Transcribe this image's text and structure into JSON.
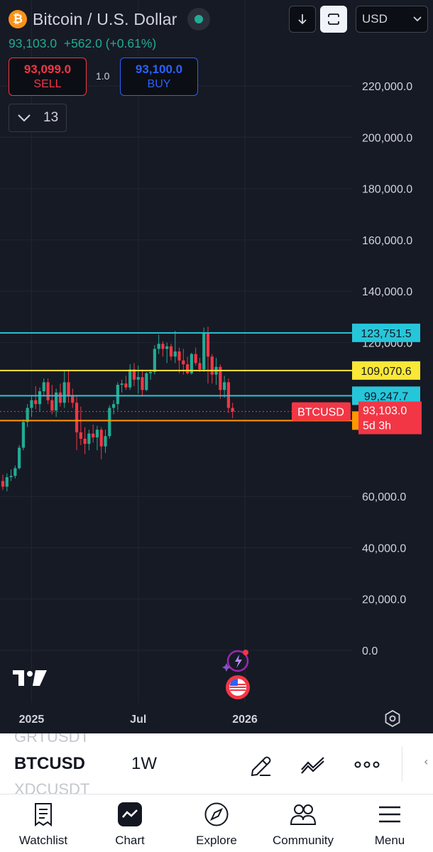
{
  "header": {
    "logo_glyph": "₿",
    "title": "Bitcoin / U.S. Dollar",
    "currency": "USD",
    "price_line": "93,103.0  +562.0 (+0.61%)"
  },
  "trade": {
    "sell_price": "93,099.0",
    "sell_label": "SELL",
    "spread": "1.0",
    "buy_price": "93,100.0",
    "buy_label": "BUY"
  },
  "indicators_count": "13",
  "chart_data": {
    "type": "candlestick",
    "interval": "1W",
    "ylim": [
      0,
      230000
    ],
    "y_ticks": [
      {
        "value": 220000,
        "label": "220,000.0"
      },
      {
        "value": 200000,
        "label": "200,000.0"
      },
      {
        "value": 180000,
        "label": "180,000.0"
      },
      {
        "value": 160000,
        "label": "160,000.0"
      },
      {
        "value": 140000,
        "label": "140,000.0"
      },
      {
        "value": 120000,
        "label": "120,000.0"
      },
      {
        "value": 60000,
        "label": "60,000.0"
      },
      {
        "value": 40000,
        "label": "40,000.0"
      },
      {
        "value": 20000,
        "label": "20,000.0"
      },
      {
        "value": 0,
        "label": "0.0"
      }
    ],
    "x_ticks": [
      {
        "week": 7,
        "label": "2025"
      },
      {
        "week": 33,
        "label": "Jul"
      },
      {
        "week": 59,
        "label": "2026"
      }
    ],
    "candles": [
      [
        66000,
        68500,
        62500,
        63800
      ],
      [
        63800,
        69000,
        62000,
        67500
      ],
      [
        67500,
        70500,
        66000,
        68000
      ],
      [
        68000,
        72000,
        67000,
        71000
      ],
      [
        71000,
        80000,
        70500,
        79000
      ],
      [
        79000,
        90000,
        78000,
        89000
      ],
      [
        89000,
        96000,
        87000,
        94500
      ],
      [
        94500,
        99500,
        91000,
        97500
      ],
      [
        97500,
        103000,
        94000,
        96000
      ],
      [
        96000,
        102500,
        93000,
        101000
      ],
      [
        101000,
        106000,
        99500,
        104500
      ],
      [
        104500,
        106000,
        96000,
        97500
      ],
      [
        97500,
        103500,
        92000,
        93500
      ],
      [
        93500,
        102000,
        91000,
        100500
      ],
      [
        100500,
        104000,
        95000,
        96500
      ],
      [
        96500,
        109000,
        94500,
        104500
      ],
      [
        104500,
        109500,
        96500,
        99000
      ],
      [
        99000,
        102000,
        94500,
        96500
      ],
      [
        96500,
        99000,
        78000,
        85000
      ],
      [
        85000,
        95000,
        80000,
        82500
      ],
      [
        82500,
        87000,
        76500,
        80500
      ],
      [
        80500,
        86000,
        78000,
        84500
      ],
      [
        84500,
        88000,
        81000,
        83000
      ],
      [
        83000,
        87500,
        78000,
        86000
      ],
      [
        86000,
        87000,
        74500,
        79500
      ],
      [
        79500,
        86000,
        77000,
        83500
      ],
      [
        83500,
        95500,
        82500,
        94500
      ],
      [
        94500,
        97500,
        92000,
        96000
      ],
      [
        96000,
        104500,
        93500,
        103500
      ],
      [
        103500,
        105500,
        100500,
        104000
      ],
      [
        104000,
        107000,
        101500,
        102500
      ],
      [
        102500,
        111500,
        101500,
        109500
      ],
      [
        109500,
        112000,
        103000,
        105500
      ],
      [
        105500,
        111000,
        100000,
        106500
      ],
      [
        106500,
        109500,
        99000,
        101500
      ],
      [
        101500,
        108500,
        101000,
        108000
      ],
      [
        108000,
        109500,
        105500,
        108500
      ],
      [
        108500,
        119000,
        107500,
        117500
      ],
      [
        117500,
        123000,
        115500,
        119500
      ],
      [
        119500,
        120500,
        114500,
        117500
      ],
      [
        117500,
        120000,
        112000,
        118500
      ],
      [
        118500,
        119500,
        113000,
        114500
      ],
      [
        114500,
        124500,
        112000,
        116500
      ],
      [
        116500,
        118000,
        108000,
        113000
      ],
      [
        113000,
        117500,
        107500,
        111500
      ],
      [
        111500,
        114500,
        107500,
        108000
      ],
      [
        108000,
        116000,
        107500,
        115500
      ],
      [
        115500,
        118000,
        111000,
        112000
      ],
      [
        112000,
        114000,
        108500,
        109500
      ],
      [
        109500,
        125800,
        108500,
        123500
      ],
      [
        123500,
        126200,
        104000,
        114500
      ],
      [
        114500,
        115500,
        104000,
        107500
      ],
      [
        107500,
        114000,
        103500,
        110500
      ],
      [
        110500,
        111500,
        98000,
        101500
      ],
      [
        101500,
        107000,
        98500,
        104500
      ],
      [
        104500,
        106000,
        92500,
        94500
      ],
      [
        94500,
        96500,
        90500,
        93103
      ]
    ]
  },
  "levels": [
    {
      "value": 123751.5,
      "label": "123,751.5",
      "color": "#26c6da",
      "text_color": "#131722"
    },
    {
      "value": 109070.6,
      "label": "109,070.6",
      "color": "#fbe737",
      "text_color": "#131722"
    },
    {
      "value": 99247.7,
      "label": "99,247.7",
      "color": "#26c6da",
      "text_color": "#131722"
    },
    {
      "value": 89557.9,
      "label": "89,557.9",
      "color": "#ff9800",
      "text_color": "#131722"
    }
  ],
  "current_price": {
    "symbol": "BTCUSD",
    "price": "93,103.0",
    "countdown": "5d 3h",
    "value": 93103,
    "color": "#f23645"
  },
  "colors": {
    "up": "#22ab94",
    "down": "#f23645",
    "background": "#161a25",
    "grid": "#222631"
  },
  "symbol_bar": {
    "ghost_prev": "GRTUSDT",
    "symbol": "BTCUSD",
    "interval": "1W",
    "ghost_next": "XDCUSDT"
  },
  "nav": [
    {
      "label": "Watchlist",
      "icon": "watchlist-icon"
    },
    {
      "label": "Chart",
      "icon": "chart-icon"
    },
    {
      "label": "Explore",
      "icon": "compass-icon"
    },
    {
      "label": "Community",
      "icon": "community-icon"
    },
    {
      "label": "Menu",
      "icon": "menu-icon"
    }
  ]
}
